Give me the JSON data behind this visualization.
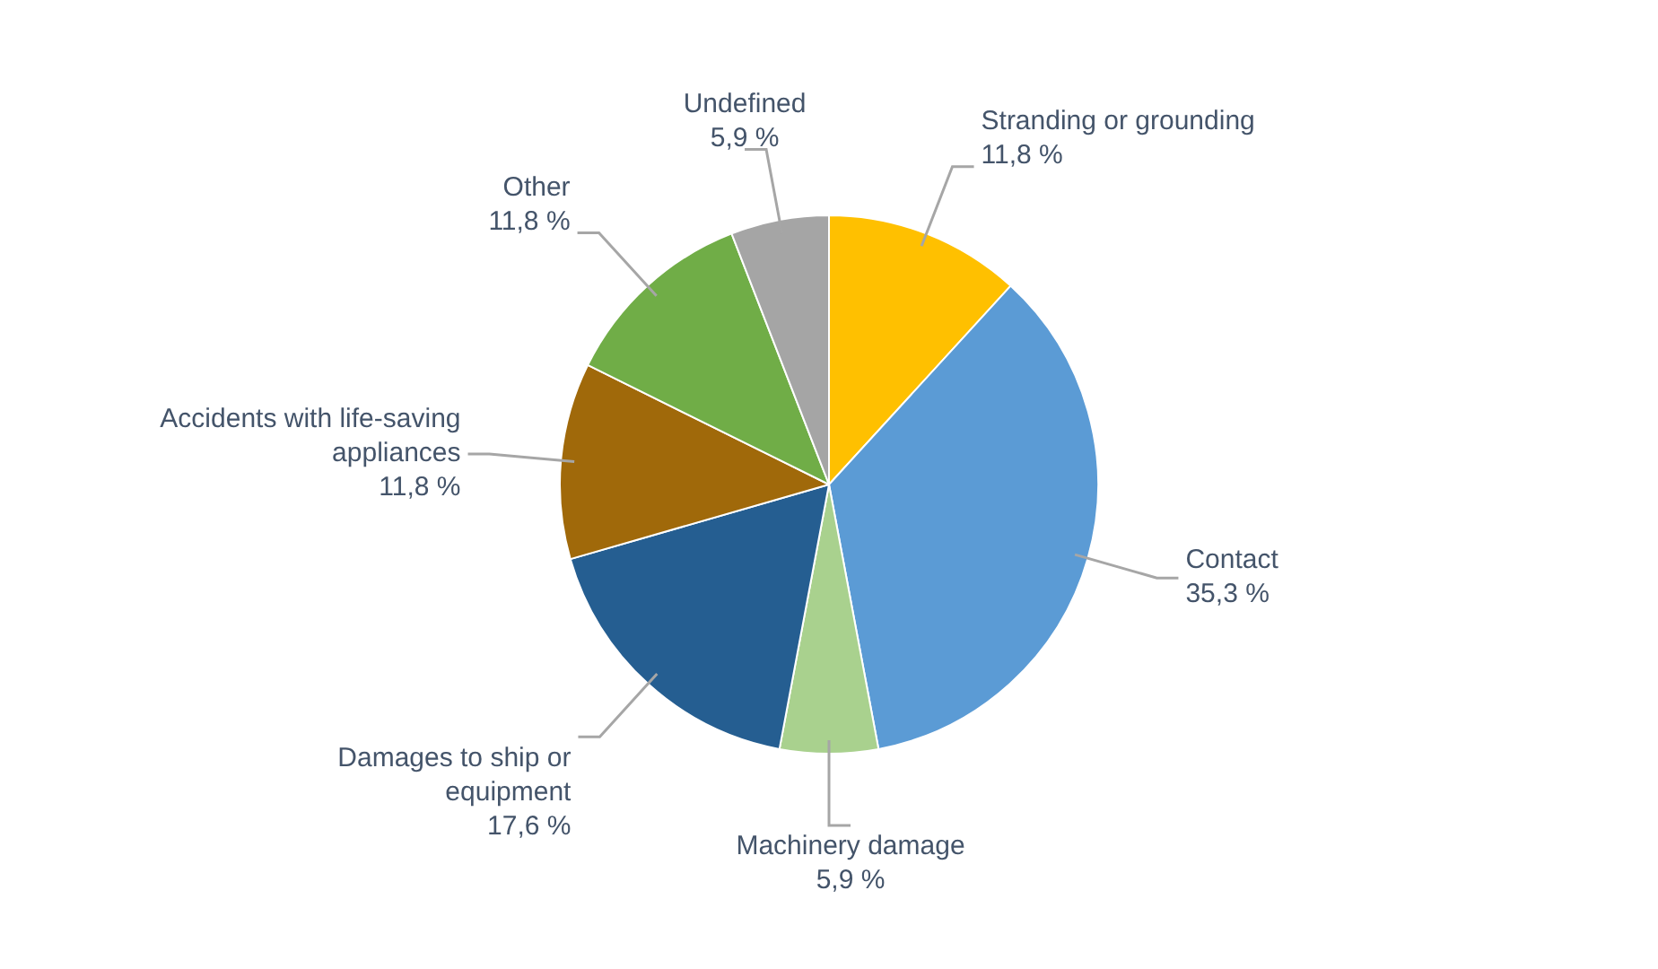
{
  "chart_data": {
    "type": "pie",
    "categories": [
      "Stranding or grounding",
      "Contact",
      "Machinery damage",
      "Damages to ship or equipment",
      "Accidents with life-saving appliances",
      "Other",
      "Undefined"
    ],
    "values": [
      11.8,
      35.3,
      5.9,
      17.6,
      11.8,
      11.8,
      5.9
    ],
    "colors": [
      "#ffc000",
      "#5b9bd5",
      "#a9d18e",
      "#255e91",
      "#a0690a",
      "#70ad47",
      "#a5a5a5"
    ],
    "value_labels": [
      "11,8 %",
      "35,3 %",
      "5,9 %",
      "17,6 %",
      "11,8 %",
      "11,8 %",
      "5,9 %"
    ],
    "legend": false
  }
}
